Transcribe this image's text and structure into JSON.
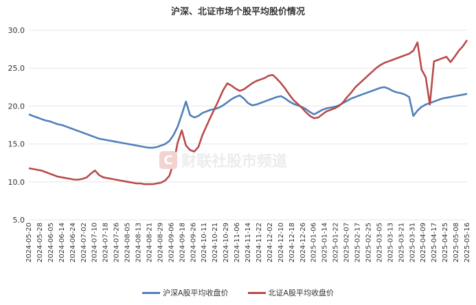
{
  "chart_data": {
    "type": "line",
    "title": "沪深、北证市场个股平均股价情况",
    "xlabel": "",
    "ylabel": "",
    "ylim": [
      5.0,
      30.0
    ],
    "yticks": [
      "5.0",
      "10.0",
      "15.0",
      "20.0",
      "25.0",
      "30.0"
    ],
    "grid": true,
    "legend": "bottom",
    "x_tick_labels": [
      "2024-05-20",
      "2024-05-28",
      "2024-06-05",
      "2024-06-14",
      "2024-06-24",
      "2024-07-02",
      "2024-07-10",
      "2024-07-18",
      "2024-07-26",
      "2024-08-05",
      "2024-08-13",
      "2024-08-21",
      "2024-08-29",
      "2024-09-06",
      "2024-09-18",
      "2024-09-26",
      "2024-10-11",
      "2024-10-21",
      "2024-10-29",
      "2024-11-06",
      "2024-11-14",
      "2024-11-22",
      "2024-12-02",
      "2024-12-10",
      "2024-12-18",
      "2024-12-26",
      "2025-01-06",
      "2025-01-14",
      "2025-01-22",
      "2025-02-07",
      "2025-02-17",
      "2025-02-25",
      "2025-03-05",
      "2025-03-13",
      "2025-03-21",
      "2025-03-31",
      "2025-04-09",
      "2025-04-17",
      "2025-04-25",
      "2025-05-08",
      "2025-05-16"
    ],
    "series": [
      {
        "name": "沪深A股平均收盘价",
        "color": "#4f7fb8",
        "values": [
          18.9,
          18.7,
          18.5,
          18.3,
          18.1,
          18.0,
          17.8,
          17.6,
          17.5,
          17.3,
          17.1,
          16.9,
          16.7,
          16.5,
          16.3,
          16.1,
          15.9,
          15.7,
          15.6,
          15.5,
          15.4,
          15.3,
          15.2,
          15.1,
          15.0,
          14.9,
          14.8,
          14.7,
          14.6,
          14.5,
          14.5,
          14.6,
          14.8,
          15.0,
          15.4,
          16.2,
          17.3,
          18.9,
          20.6,
          18.8,
          18.5,
          18.7,
          19.1,
          19.3,
          19.5,
          19.6,
          19.8,
          20.1,
          20.5,
          20.9,
          21.2,
          21.4,
          21.0,
          20.4,
          20.1,
          20.2,
          20.4,
          20.6,
          20.8,
          21.0,
          21.2,
          21.3,
          21.0,
          20.6,
          20.3,
          20.1,
          19.9,
          19.6,
          19.2,
          18.9,
          19.2,
          19.5,
          19.7,
          19.8,
          19.9,
          20.1,
          20.4,
          20.7,
          21.0,
          21.2,
          21.4,
          21.6,
          21.8,
          22.0,
          22.2,
          22.4,
          22.5,
          22.3,
          22.0,
          21.8,
          21.7,
          21.5,
          21.2,
          18.7,
          19.4,
          19.9,
          20.2,
          20.4,
          20.6,
          20.8,
          21.0,
          21.1,
          21.2,
          21.3,
          21.4,
          21.5,
          21.6
        ]
      },
      {
        "name": "北证A股平均收盘价",
        "color": "#b84a4a",
        "values": [
          11.8,
          11.7,
          11.6,
          11.5,
          11.3,
          11.1,
          10.9,
          10.7,
          10.6,
          10.5,
          10.4,
          10.3,
          10.3,
          10.4,
          10.6,
          11.1,
          11.5,
          10.9,
          10.6,
          10.5,
          10.4,
          10.3,
          10.2,
          10.1,
          10.0,
          9.9,
          9.8,
          9.8,
          9.7,
          9.7,
          9.7,
          9.8,
          9.9,
          10.2,
          10.8,
          12.5,
          15.2,
          16.8,
          14.8,
          14.2,
          14.0,
          14.6,
          16.2,
          17.4,
          18.6,
          19.7,
          20.9,
          22.1,
          23.0,
          22.7,
          22.3,
          22.0,
          22.2,
          22.6,
          23.0,
          23.3,
          23.5,
          23.7,
          24.0,
          24.1,
          23.6,
          23.0,
          22.3,
          21.5,
          20.8,
          20.3,
          19.8,
          19.2,
          18.7,
          18.4,
          18.5,
          18.9,
          19.3,
          19.5,
          19.7,
          20.0,
          20.5,
          21.2,
          21.8,
          22.5,
          23.0,
          23.5,
          24.0,
          24.5,
          25.0,
          25.4,
          25.7,
          25.9,
          26.1,
          26.3,
          26.5,
          26.7,
          26.9,
          27.3,
          28.4,
          24.8,
          23.8,
          20.2,
          25.9,
          26.1,
          26.3,
          26.5,
          25.8,
          26.5,
          27.3,
          27.9,
          28.7
        ]
      }
    ]
  },
  "watermark": {
    "logo_glyph": "C",
    "text": "财联社股市频道"
  }
}
